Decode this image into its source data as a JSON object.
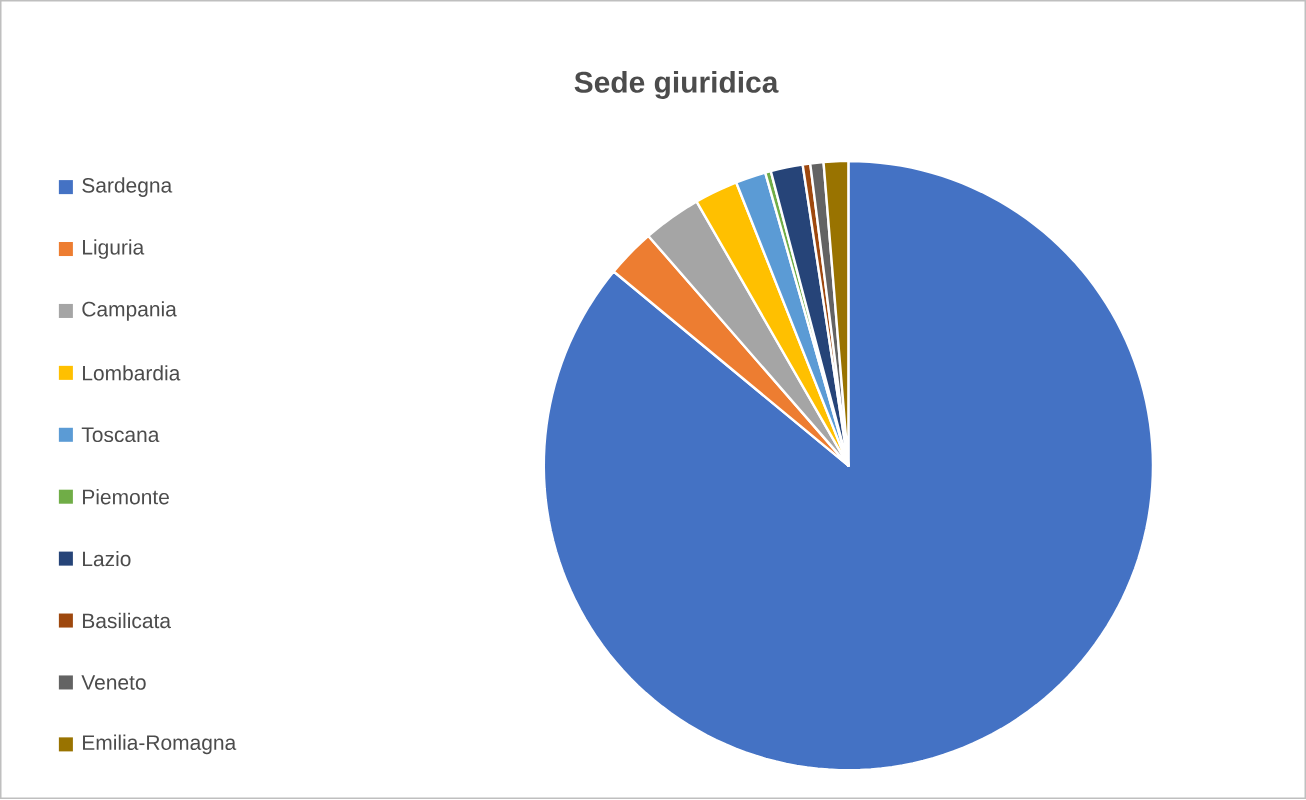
{
  "chart_data": {
    "type": "pie",
    "title": "Sede giuridica",
    "categories": [
      "Sardegna",
      "Liguria",
      "Campania",
      "Lombardia",
      "Toscana",
      "Piemonte",
      "Lazio",
      "Basilicata",
      "Veneto",
      "Emilia-Romagna"
    ],
    "values": [
      86,
      2.6,
      3.1,
      2.3,
      1.6,
      0.3,
      1.7,
      0.4,
      0.7,
      1.3
    ],
    "colors": [
      "#4472c4",
      "#ed7d31",
      "#a5a5a5",
      "#ffc000",
      "#5b9bd5",
      "#70ad47",
      "#264478",
      "#9e480e",
      "#636363",
      "#997300"
    ],
    "legend": "left"
  }
}
